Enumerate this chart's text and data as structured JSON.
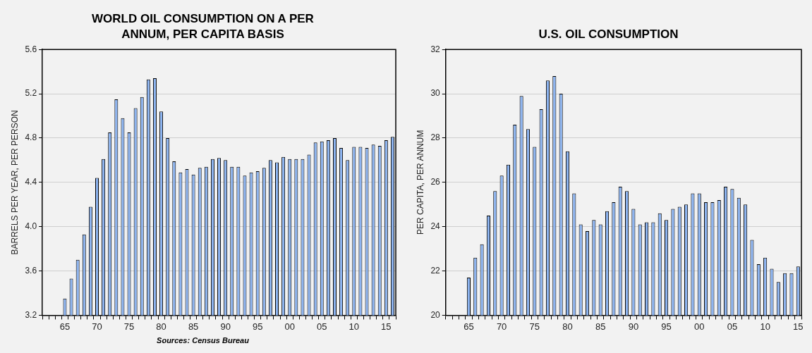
{
  "chart_data": [
    {
      "type": "bar",
      "title": "WORLD OIL CONSUMPTION ON A PER ANNUM, PER CAPITA BASIS",
      "ylabel": "BARRELS PER YEAR, PER PERSON",
      "color": "#8db4f0",
      "grid": "y",
      "categories": [
        null,
        null,
        null,
        "65",
        null,
        null,
        null,
        null,
        "70",
        null,
        null,
        null,
        null,
        "75",
        null,
        null,
        null,
        null,
        "80",
        null,
        null,
        null,
        null,
        "85",
        null,
        null,
        null,
        null,
        "90",
        null,
        null,
        null,
        null,
        "95",
        null,
        null,
        null,
        null,
        "00",
        null,
        null,
        null,
        null,
        "05",
        null,
        null,
        null,
        null,
        "10",
        null,
        null,
        null,
        null,
        "15",
        null
      ],
      "values": [
        null,
        null,
        null,
        3.35,
        3.53,
        3.7,
        3.93,
        4.18,
        4.44,
        4.61,
        4.85,
        5.15,
        4.98,
        4.85,
        5.07,
        5.17,
        5.33,
        5.34,
        5.04,
        4.8,
        4.59,
        4.49,
        4.52,
        4.47,
        4.53,
        4.54,
        4.61,
        4.62,
        4.6,
        4.54,
        4.54,
        4.46,
        4.49,
        4.5,
        4.53,
        4.6,
        4.58,
        4.63,
        4.61,
        4.61,
        4.61,
        4.65,
        4.76,
        4.77,
        4.78,
        4.8,
        4.71,
        4.6,
        4.72,
        4.72,
        4.71,
        4.74,
        4.73,
        4.78,
        4.81
      ],
      "ylim": [
        3.2,
        5.6
      ],
      "yticks": [
        3.2,
        3.6,
        {
          "value": 4,
          "label": "4.0"
        },
        4.4,
        4.8,
        5.2,
        5.6
      ],
      "annotations": [
        "Sources: Census Bureau"
      ]
    },
    {
      "type": "bar",
      "title": "U.S. OIL CONSUMPTION",
      "ylabel": "PER CAPITA, PER ANNUM",
      "color": "#8db4f0",
      "grid": "y",
      "categories": [
        null,
        null,
        null,
        "65",
        null,
        null,
        null,
        null,
        "70",
        null,
        null,
        null,
        null,
        "75",
        null,
        null,
        null,
        null,
        "80",
        null,
        null,
        null,
        null,
        "85",
        null,
        null,
        null,
        null,
        "90",
        null,
        null,
        null,
        null,
        "95",
        null,
        null,
        null,
        null,
        "00",
        null,
        null,
        null,
        null,
        "05",
        null,
        null,
        null,
        null,
        "10",
        null,
        null,
        null,
        null,
        "15"
      ],
      "values": [
        null,
        null,
        null,
        21.7,
        22.6,
        23.2,
        24.5,
        25.6,
        26.3,
        26.8,
        28.6,
        29.9,
        28.4,
        27.6,
        29.3,
        30.6,
        30.8,
        30.0,
        27.4,
        25.5,
        24.1,
        23.8,
        24.3,
        24.1,
        24.7,
        25.1,
        25.8,
        25.6,
        24.8,
        24.1,
        24.2,
        24.2,
        24.6,
        24.3,
        24.8,
        24.9,
        25.0,
        25.5,
        25.5,
        25.1,
        25.1,
        25.2,
        25.8,
        25.7,
        25.3,
        25.0,
        23.4,
        22.3,
        22.6,
        22.1,
        21.5,
        21.9,
        21.9,
        22.2
      ],
      "ylim": [
        20,
        32
      ],
      "yticks": [
        20,
        22,
        24,
        26,
        28,
        30,
        32
      ]
    }
  ]
}
